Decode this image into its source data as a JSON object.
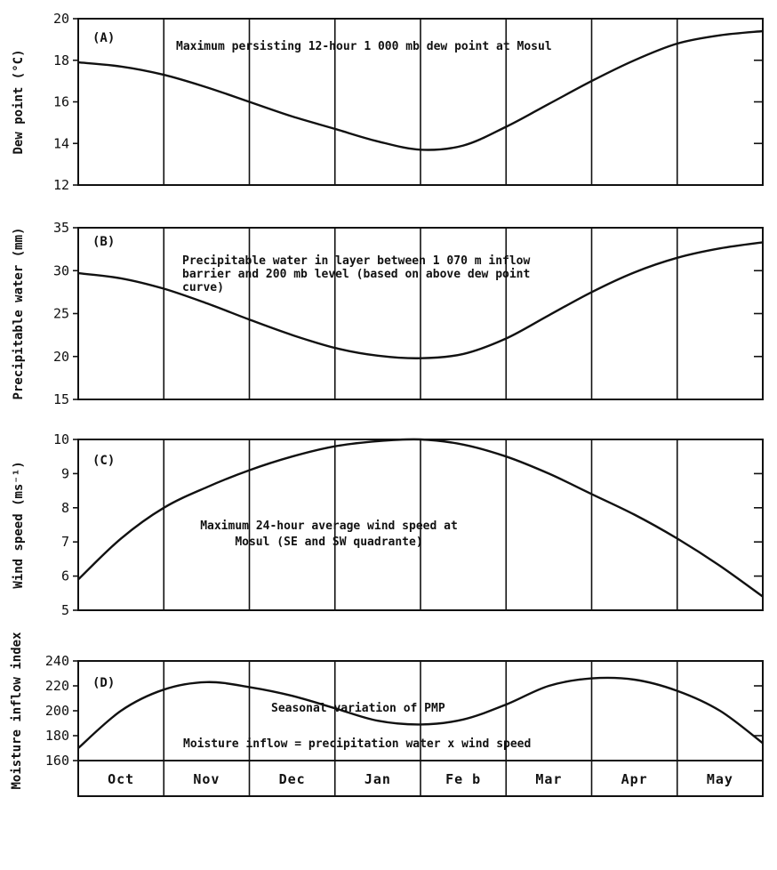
{
  "chart_data": [
    {
      "type": "line",
      "panel_label": "(A)",
      "annotation": [
        "Maximum persisting 12-hour 1 000 mb dew point at Mosul"
      ],
      "ylabel": "Dew point (°C)",
      "ylim": [
        12,
        20
      ],
      "yticks": [
        12,
        14,
        16,
        18,
        20
      ],
      "grid": "vertical month lines",
      "x": [
        0.0,
        0.5,
        1.0,
        1.5,
        2.0,
        2.5,
        3.0,
        3.5,
        4.0,
        4.5,
        5.0,
        5.5,
        6.0,
        6.5,
        7.0,
        7.5,
        8.0
      ],
      "values": [
        17.9,
        17.7,
        17.3,
        16.7,
        16.0,
        15.3,
        14.7,
        14.1,
        13.7,
        13.9,
        14.8,
        15.9,
        17.0,
        18.0,
        18.8,
        19.2,
        19.4
      ]
    },
    {
      "type": "line",
      "panel_label": "(B)",
      "annotation": [
        "Precipitable water in layer between 1 070 m inflow",
        "barrier and 200 mb level  (based on above dew point",
        "curve)"
      ],
      "ylabel": "Precipitable water (mm)",
      "ylim": [
        15,
        35
      ],
      "yticks": [
        15,
        20,
        25,
        30,
        35
      ],
      "grid": "vertical month lines",
      "x": [
        0.0,
        0.5,
        1.0,
        1.5,
        2.0,
        2.5,
        3.0,
        3.5,
        4.0,
        4.5,
        5.0,
        5.5,
        6.0,
        6.5,
        7.0,
        7.5,
        8.0
      ],
      "values": [
        29.7,
        29.1,
        27.9,
        26.2,
        24.3,
        22.5,
        21.0,
        20.1,
        19.8,
        20.3,
        22.1,
        24.8,
        27.5,
        29.8,
        31.5,
        32.6,
        33.3
      ]
    },
    {
      "type": "line",
      "panel_label": "(C)",
      "annotation": [
        "Maximum 24-hour average wind speed at",
        "Mosul (SE and SW quadrante)"
      ],
      "ylabel": "Wind speed (ms⁻¹)",
      "ylim": [
        5,
        10
      ],
      "yticks": [
        5,
        6,
        7,
        8,
        9,
        10
      ],
      "grid": "vertical month lines",
      "x": [
        0.0,
        0.5,
        1.0,
        1.5,
        2.0,
        2.5,
        3.0,
        3.5,
        4.0,
        4.5,
        5.0,
        5.5,
        6.0,
        6.5,
        7.0,
        7.5,
        8.0
      ],
      "values": [
        5.9,
        7.1,
        8.0,
        8.6,
        9.1,
        9.5,
        9.8,
        9.95,
        10.0,
        9.85,
        9.5,
        9.0,
        8.4,
        7.8,
        7.1,
        6.3,
        5.4
      ]
    },
    {
      "type": "line",
      "panel_label": "(D)",
      "annotation": [
        "Seasonal variation of PMP",
        "Moisture inflow = precipitation water x wind speed"
      ],
      "ylabel": "Moisture inflow index",
      "ylim": [
        160,
        240
      ],
      "yticks": [
        160,
        180,
        200,
        220,
        240
      ],
      "grid": "vertical month lines",
      "x": [
        0.0,
        0.5,
        1.0,
        1.5,
        2.0,
        2.5,
        3.0,
        3.5,
        4.0,
        4.5,
        5.0,
        5.5,
        6.0,
        6.5,
        7.0,
        7.5,
        8.0
      ],
      "values": [
        170,
        200,
        217,
        223,
        219,
        212,
        202,
        192,
        189,
        193,
        205,
        220,
        226,
        225,
        216,
        200,
        174
      ]
    }
  ],
  "months": [
    "Oct",
    "Nov",
    "Dec",
    "Jan",
    "Fe b",
    "Mar",
    "Apr",
    "May"
  ]
}
